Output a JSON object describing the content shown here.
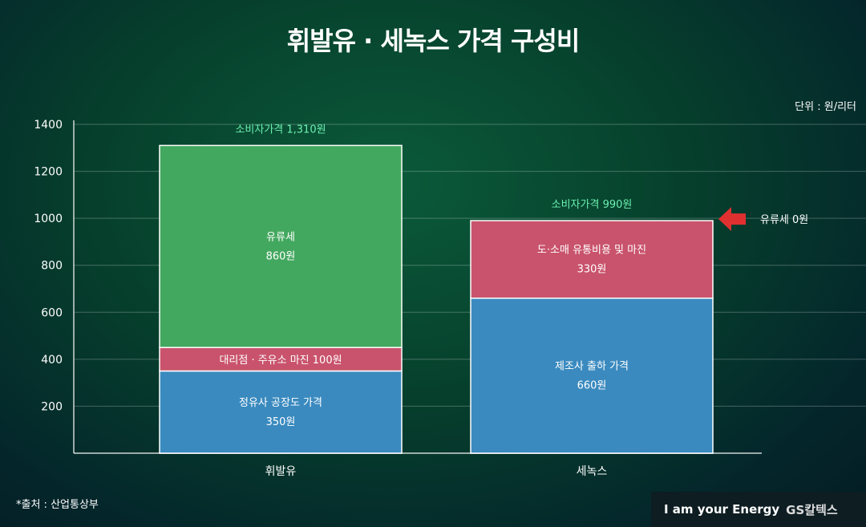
{
  "title": "휘발유 · 세녹스 가격 구성비",
  "unit": "단위 : 원/리터",
  "source": "*출처 : 산업통상부",
  "brand": {
    "slogan": "I am your Energy",
    "logo": "GS칼텍스"
  },
  "chart_data": {
    "type": "bar",
    "stacked": true,
    "title": "휘발유 · 세녹스 가격 구성비",
    "categories": [
      "휘발유",
      "세녹스"
    ],
    "ylim": [
      0,
      1400
    ],
    "yticks": [
      200,
      400,
      600,
      800,
      1000,
      1200,
      1400
    ],
    "grid": true,
    "colors": {
      "blue": "#3a8abf",
      "red": "#c9536c",
      "green": "#43a85f",
      "total_label": "#6cf0b0",
      "arrow": "#e03030"
    },
    "stacks": [
      {
        "category": "휘발유",
        "total_label": "소비자가격 1,310원",
        "segments": [
          {
            "label": "정유사 공장도 가격",
            "value_label": "350원",
            "value": 350,
            "color": "blue"
          },
          {
            "label": "대리점 · 주유소 마진 100원",
            "value_label": "",
            "value": 100,
            "color": "red"
          },
          {
            "label": "유류세",
            "value_label": "860원",
            "value": 860,
            "color": "green"
          }
        ]
      },
      {
        "category": "세녹스",
        "total_label": "소비자가격 990원",
        "segments": [
          {
            "label": "제조사 출하 가격",
            "value_label": "660원",
            "value": 660,
            "color": "blue"
          },
          {
            "label": "도·소매 유통비용 및 마진",
            "value_label": "330원",
            "value": 330,
            "color": "red"
          }
        ]
      }
    ],
    "annotation": "유류세 0원"
  }
}
